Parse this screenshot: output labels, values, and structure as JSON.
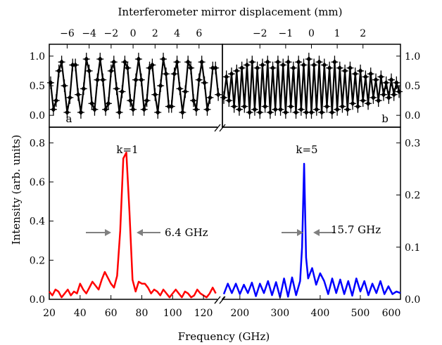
{
  "chart_data": [
    {
      "type": "line",
      "panel": "a",
      "panel_label": "a",
      "top_axis": {
        "label": "Interferometer mirror displacement (mm)",
        "range": [
          -7.5,
          8
        ],
        "ticks": [
          -6,
          -4,
          -2,
          0,
          2,
          4,
          6
        ]
      },
      "ylim": [
        -0.2,
        1.2
      ],
      "yticks": [
        0.0,
        0.5,
        1.0
      ],
      "series": [
        {
          "color": "#000000",
          "marker": "diamond",
          "errorbars": true,
          "x": [
            -7.5,
            -7.25,
            -7.0,
            -6.75,
            -6.5,
            -6.25,
            -6.0,
            -5.75,
            -5.5,
            -5.25,
            -5.0,
            -4.75,
            -4.5,
            -4.25,
            -4.0,
            -3.75,
            -3.5,
            -3.25,
            -3.0,
            -2.75,
            -2.5,
            -2.25,
            -2.0,
            -1.75,
            -1.5,
            -1.25,
            -1.0,
            -0.75,
            -0.5,
            -0.25,
            0.0,
            0.25,
            0.5,
            0.75,
            1.0,
            1.25,
            1.5,
            1.75,
            2.0,
            2.25,
            2.5,
            2.75,
            3.0,
            3.25,
            3.5,
            3.75,
            4.0,
            4.25,
            4.5,
            4.75,
            5.0,
            5.25,
            5.5,
            5.75,
            6.0,
            6.25,
            6.5,
            6.75,
            7.0,
            7.25,
            7.5,
            7.75
          ],
          "y": [
            0.55,
            0.1,
            0.25,
            0.75,
            0.9,
            0.5,
            0.05,
            0.3,
            0.85,
            0.85,
            0.35,
            0.05,
            0.45,
            0.95,
            0.75,
            0.2,
            0.1,
            0.6,
            0.95,
            0.6,
            0.1,
            0.2,
            0.75,
            0.9,
            0.45,
            0.05,
            0.4,
            0.9,
            0.8,
            0.25,
            0.1,
            0.6,
            0.95,
            0.6,
            0.1,
            0.25,
            0.8,
            0.85,
            0.35,
            0.05,
            0.5,
            0.95,
            0.7,
            0.15,
            0.15,
            0.7,
            0.9,
            0.45,
            0.05,
            0.4,
            0.9,
            0.8,
            0.25,
            0.1,
            0.6,
            0.9,
            0.55,
            0.1,
            0.3,
            0.8,
            0.8,
            0.35
          ]
        }
      ]
    },
    {
      "type": "line",
      "panel": "b",
      "panel_label": "b",
      "top_axis": {
        "label": "",
        "range": [
          -3.4,
          3.4
        ],
        "ticks": [
          -2,
          -1,
          0,
          1,
          2
        ]
      },
      "ylim": [
        -0.2,
        1.2
      ],
      "yticks": [
        0.0,
        0.5,
        1.0
      ],
      "series": [
        {
          "color": "#000000",
          "marker": "diamond",
          "errorbars": true,
          "x": [
            -3.4,
            -3.3,
            -3.2,
            -3.1,
            -3.0,
            -2.9,
            -2.8,
            -2.7,
            -2.6,
            -2.5,
            -2.4,
            -2.3,
            -2.2,
            -2.1,
            -2.0,
            -1.9,
            -1.8,
            -1.7,
            -1.6,
            -1.5,
            -1.4,
            -1.3,
            -1.2,
            -1.1,
            -1.0,
            -0.9,
            -0.8,
            -0.7,
            -0.6,
            -0.5,
            -0.4,
            -0.3,
            -0.2,
            -0.1,
            0.0,
            0.1,
            0.2,
            0.3,
            0.4,
            0.5,
            0.6,
            0.7,
            0.8,
            0.9,
            1.0,
            1.1,
            1.2,
            1.3,
            1.4,
            1.5,
            1.6,
            1.7,
            1.8,
            1.9,
            2.0,
            2.1,
            2.2,
            2.3,
            2.4,
            2.5,
            2.6,
            2.7,
            2.8,
            2.9,
            3.0,
            3.1,
            3.2,
            3.3,
            3.4
          ],
          "y": [
            0.3,
            0.65,
            0.25,
            0.7,
            0.15,
            0.75,
            0.1,
            0.8,
            0.15,
            0.85,
            0.05,
            0.9,
            0.1,
            0.8,
            0.05,
            0.85,
            0.15,
            0.9,
            0.05,
            0.8,
            0.1,
            0.9,
            0.1,
            0.85,
            0.05,
            0.9,
            0.15,
            0.8,
            0.05,
            0.9,
            0.1,
            0.85,
            0.05,
            0.95,
            0.05,
            0.85,
            0.1,
            0.9,
            0.05,
            0.85,
            0.15,
            0.8,
            0.05,
            0.9,
            0.1,
            0.8,
            0.15,
            0.75,
            0.1,
            0.8,
            0.2,
            0.7,
            0.15,
            0.75,
            0.25,
            0.65,
            0.2,
            0.7,
            0.3,
            0.6,
            0.25,
            0.65,
            0.35,
            0.55,
            0.3,
            0.6,
            0.35,
            0.55,
            0.4
          ]
        }
      ]
    },
    {
      "type": "line",
      "panel": "spectrum-left",
      "xlim": [
        20,
        130
      ],
      "xticks": [
        20,
        40,
        60,
        80,
        100,
        120
      ],
      "ylim": [
        0,
        0.88
      ],
      "yticks": [
        0.0,
        0.2,
        0.4,
        0.6,
        0.8
      ],
      "annotations": [
        "k=1",
        "6.4 GHz"
      ],
      "series": [
        {
          "color": "#ff0000",
          "x": [
            20,
            22,
            24,
            26,
            28,
            30,
            32,
            34,
            36,
            38,
            40,
            42,
            44,
            46,
            48,
            50,
            52,
            54,
            56,
            58,
            60,
            62,
            64,
            66,
            68,
            70,
            72,
            74,
            76,
            78,
            80,
            82,
            84,
            86,
            88,
            90,
            92,
            94,
            96,
            98,
            100,
            102,
            104,
            106,
            108,
            110,
            112,
            114,
            116,
            118,
            120,
            122,
            124,
            126,
            128
          ],
          "y": [
            0.04,
            0.02,
            0.05,
            0.04,
            0.01,
            0.03,
            0.05,
            0.02,
            0.04,
            0.03,
            0.08,
            0.05,
            0.03,
            0.06,
            0.09,
            0.07,
            0.05,
            0.1,
            0.14,
            0.11,
            0.08,
            0.06,
            0.12,
            0.35,
            0.72,
            0.75,
            0.45,
            0.1,
            0.04,
            0.09,
            0.08,
            0.08,
            0.06,
            0.03,
            0.05,
            0.04,
            0.02,
            0.05,
            0.03,
            0.01,
            0.03,
            0.05,
            0.03,
            0.01,
            0.04,
            0.03,
            0.01,
            0.02,
            0.05,
            0.03,
            0.02,
            0.01,
            0.03,
            0.06,
            0.03
          ]
        }
      ]
    },
    {
      "type": "line",
      "panel": "spectrum-right",
      "xlim": [
        160,
        600
      ],
      "xticks": [
        200,
        300,
        400,
        500,
        600
      ],
      "ylim": [
        0,
        0.33
      ],
      "yticks": [
        0.0,
        0.1,
        0.2,
        0.3
      ],
      "annotations": [
        "k=5",
        "15.7 GHz"
      ],
      "series": [
        {
          "color": "#0000ff",
          "x": [
            160,
            170,
            180,
            190,
            200,
            210,
            220,
            230,
            240,
            250,
            260,
            270,
            280,
            290,
            300,
            310,
            320,
            330,
            340,
            350,
            355,
            360,
            365,
            370,
            380,
            390,
            400,
            410,
            420,
            430,
            440,
            450,
            460,
            470,
            480,
            490,
            500,
            510,
            520,
            530,
            540,
            550,
            560,
            570,
            580,
            590,
            600
          ],
          "y": [
            0.01,
            0.03,
            0.012,
            0.03,
            0.01,
            0.028,
            0.012,
            0.032,
            0.006,
            0.03,
            0.012,
            0.035,
            0.008,
            0.033,
            0.004,
            0.04,
            0.005,
            0.042,
            0.008,
            0.035,
            0.1,
            0.26,
            0.08,
            0.04,
            0.06,
            0.028,
            0.05,
            0.035,
            0.01,
            0.04,
            0.012,
            0.038,
            0.01,
            0.035,
            0.007,
            0.04,
            0.015,
            0.035,
            0.008,
            0.03,
            0.012,
            0.035,
            0.01,
            0.025,
            0.01,
            0.015,
            0.012
          ]
        }
      ]
    }
  ],
  "axes": {
    "xlabel": "Frequency (GHz)",
    "ylabel": "Intensity (arb. units)"
  }
}
